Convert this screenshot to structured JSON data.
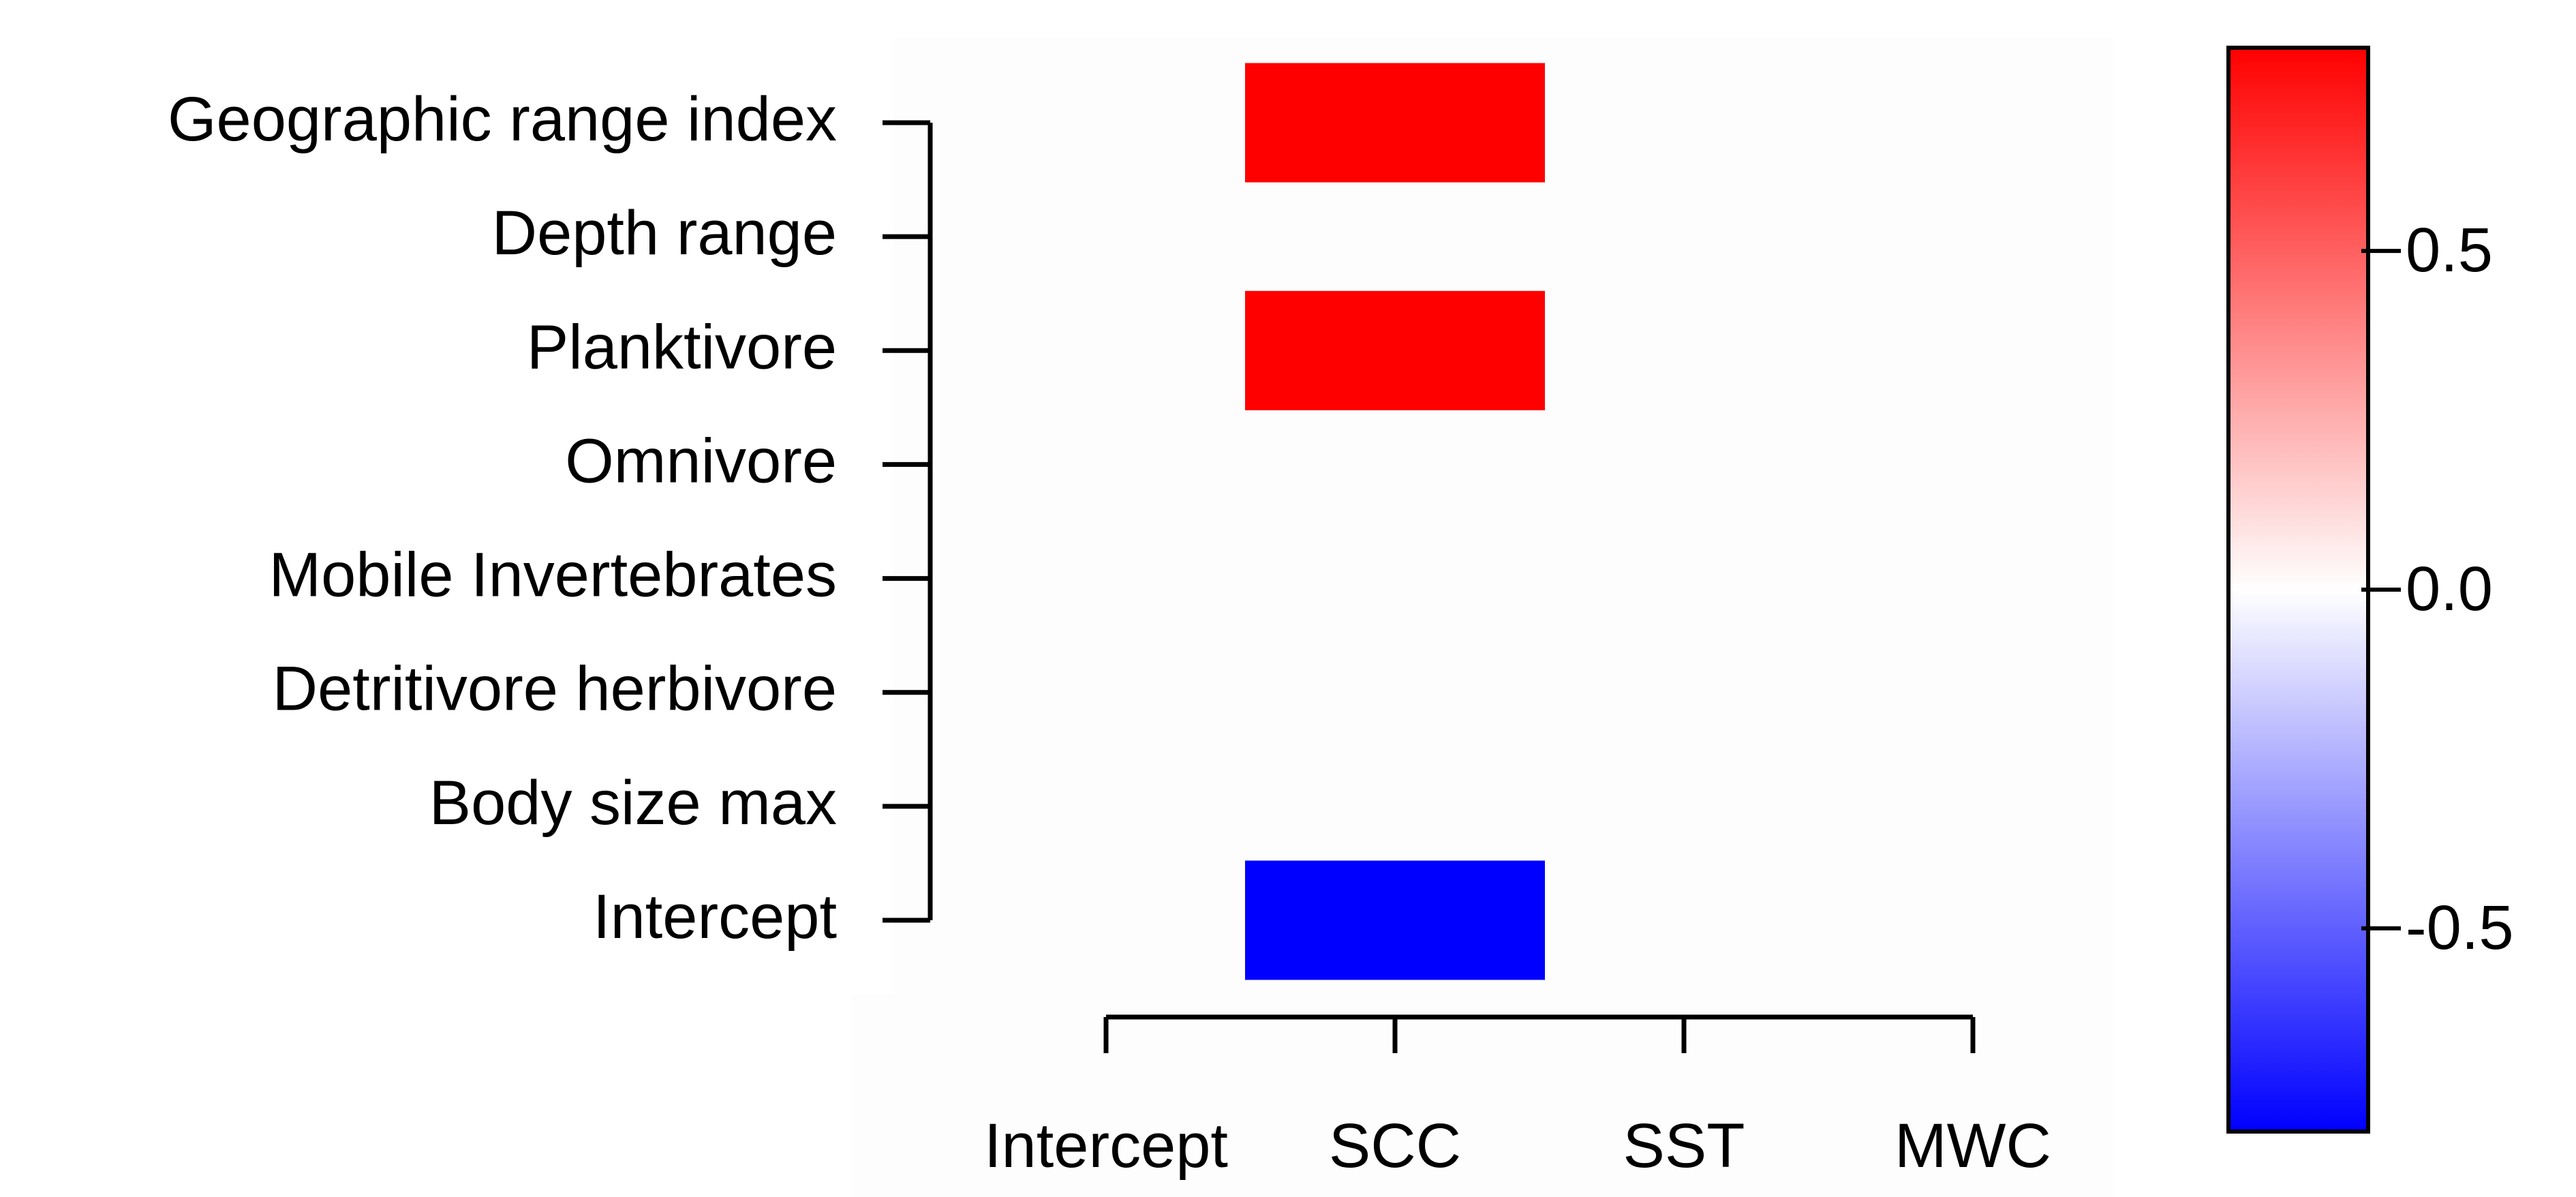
{
  "chart_data": {
    "type": "heatmap",
    "rows": [
      "Geographic range index",
      "Depth range",
      "Planktivore",
      "Omnivore",
      "Mobile Invertebrates",
      "Detritivore herbivore",
      "Body size max",
      "Intercept"
    ],
    "columns": [
      "Intercept",
      "SCC",
      "SST",
      "MWC"
    ],
    "values": [
      [
        0,
        0.8,
        0,
        0
      ],
      [
        0,
        0,
        0,
        0
      ],
      [
        0,
        0.8,
        0,
        0
      ],
      [
        0,
        0,
        0,
        0
      ],
      [
        0,
        0,
        0,
        0
      ],
      [
        0,
        0,
        0,
        0
      ],
      [
        0,
        0,
        0,
        0
      ],
      [
        0,
        -0.8,
        0,
        0
      ]
    ],
    "colorbar": {
      "ticks": [
        0.5,
        0.0,
        -0.5
      ],
      "tick_labels": [
        "0.5",
        "0.0",
        "-0.5"
      ],
      "range": [
        -0.8,
        0.8
      ],
      "colors": {
        "high": "#ff0000",
        "mid": "#ffffff",
        "low": "#0000ff"
      }
    },
    "title": "",
    "xlabel": "",
    "ylabel": ""
  }
}
